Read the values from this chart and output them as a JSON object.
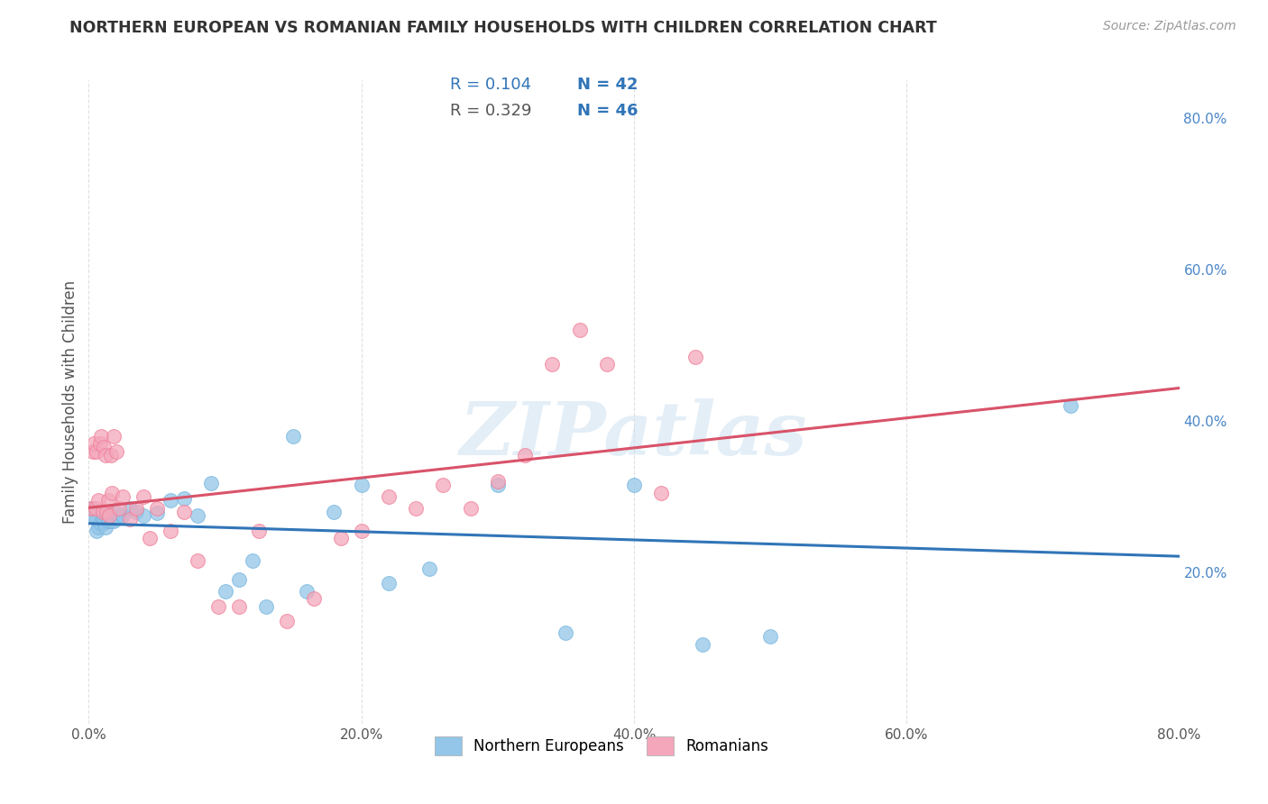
{
  "title": "NORTHERN EUROPEAN VS ROMANIAN FAMILY HOUSEHOLDS WITH CHILDREN CORRELATION CHART",
  "source": "Source: ZipAtlas.com",
  "ylabel": "Family Households with Children",
  "xlim": [
    0.0,
    0.8
  ],
  "ylim": [
    0.0,
    0.85
  ],
  "xticks": [
    0.0,
    0.2,
    0.4,
    0.6,
    0.8
  ],
  "yticks": [
    0.2,
    0.4,
    0.6,
    0.8
  ],
  "xticklabels": [
    "0.0%",
    "20.0%",
    "40.0%",
    "60.0%",
    "80.0%"
  ],
  "yticklabels": [
    "20.0%",
    "40.0%",
    "60.0%",
    "80.0%"
  ],
  "legend_labels": [
    "Northern Europeans",
    "Romanians"
  ],
  "blue_color": "#93c6e8",
  "pink_color": "#f4a7bb",
  "blue_line_color": "#3175b8",
  "pink_line_color": "#d9536a",
  "watermark": "ZIPatlas",
  "blue_x": [
    0.002,
    0.004,
    0.006,
    0.006,
    0.007,
    0.008,
    0.009,
    0.01,
    0.011,
    0.012,
    0.013,
    0.014,
    0.015,
    0.016,
    0.018,
    0.02,
    0.022,
    0.025,
    0.03,
    0.035,
    0.04,
    0.05,
    0.06,
    0.07,
    0.08,
    0.09,
    0.1,
    0.11,
    0.12,
    0.13,
    0.15,
    0.16,
    0.18,
    0.2,
    0.22,
    0.25,
    0.3,
    0.35,
    0.4,
    0.45,
    0.5,
    0.72
  ],
  "blue_y": [
    0.285,
    0.275,
    0.27,
    0.255,
    0.26,
    0.265,
    0.28,
    0.27,
    0.265,
    0.26,
    0.275,
    0.268,
    0.278,
    0.268,
    0.268,
    0.278,
    0.273,
    0.275,
    0.285,
    0.28,
    0.275,
    0.278,
    0.295,
    0.298,
    0.275,
    0.318,
    0.175,
    0.19,
    0.215,
    0.155,
    0.38,
    0.175,
    0.28,
    0.315,
    0.185,
    0.205,
    0.315,
    0.12,
    0.315,
    0.105,
    0.115,
    0.42
  ],
  "pink_x": [
    0.002,
    0.003,
    0.004,
    0.005,
    0.006,
    0.007,
    0.008,
    0.009,
    0.01,
    0.011,
    0.012,
    0.013,
    0.014,
    0.015,
    0.016,
    0.017,
    0.018,
    0.02,
    0.022,
    0.025,
    0.03,
    0.035,
    0.04,
    0.045,
    0.05,
    0.06,
    0.07,
    0.08,
    0.095,
    0.11,
    0.125,
    0.145,
    0.165,
    0.185,
    0.2,
    0.22,
    0.24,
    0.26,
    0.28,
    0.3,
    0.32,
    0.34,
    0.36,
    0.38,
    0.42,
    0.445
  ],
  "pink_y": [
    0.285,
    0.36,
    0.37,
    0.285,
    0.36,
    0.295,
    0.37,
    0.38,
    0.28,
    0.365,
    0.355,
    0.28,
    0.295,
    0.275,
    0.355,
    0.305,
    0.38,
    0.36,
    0.285,
    0.3,
    0.27,
    0.285,
    0.3,
    0.245,
    0.285,
    0.255,
    0.28,
    0.215,
    0.155,
    0.155,
    0.255,
    0.135,
    0.165,
    0.245,
    0.255,
    0.3,
    0.285,
    0.315,
    0.285,
    0.32,
    0.355,
    0.475,
    0.52,
    0.475,
    0.305,
    0.485
  ]
}
